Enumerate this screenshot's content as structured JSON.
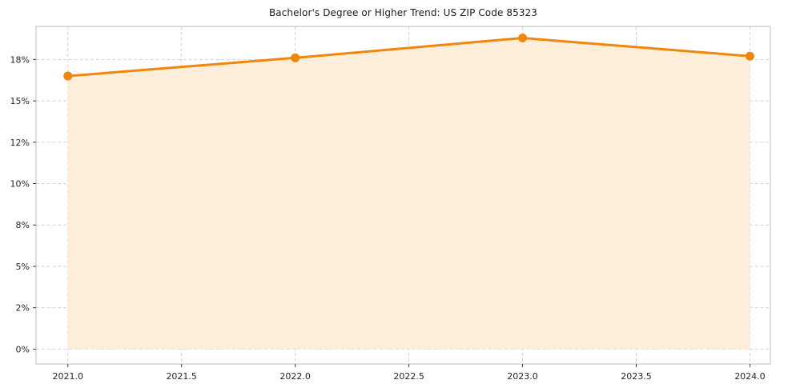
{
  "chart_data": {
    "type": "area",
    "title": "Bachelor's Degree or Higher Trend: US ZIP Code 85323",
    "xlabel": "",
    "ylabel": "",
    "x": [
      2021,
      2022,
      2023,
      2024
    ],
    "series": [
      {
        "name": "Bachelor's Degree or Higher %",
        "values": [
          16.5,
          17.6,
          18.8,
          17.7
        ]
      }
    ],
    "x_tick_values": [
      2021.0,
      2021.5,
      2022.0,
      2022.5,
      2023.0,
      2023.5,
      2024.0
    ],
    "x_tick_labels": [
      "2021.0",
      "2021.5",
      "2022.0",
      "2022.5",
      "2023.0",
      "2023.5",
      "2024.0"
    ],
    "y_tick_values": [
      0,
      2.5,
      5,
      7.5,
      10,
      12.5,
      15,
      17.5
    ],
    "y_tick_labels": [
      "0%",
      "2%",
      "5%",
      "8%",
      "10%",
      "12%",
      "15%",
      "18%"
    ],
    "xlim": [
      2020.86,
      2024.09
    ],
    "ylim": [
      -0.9,
      19.5
    ],
    "grid": true,
    "grid_style": "dashed",
    "legend": "none",
    "colors": {
      "line": "#f1860b",
      "marker": "#f1860b",
      "area_fill": "#fdeeda",
      "grid": "#d2d2d2",
      "spine": "#bdbdbd",
      "tick": "#3a3a3a",
      "label": "#262626"
    },
    "baseline": 0
  }
}
